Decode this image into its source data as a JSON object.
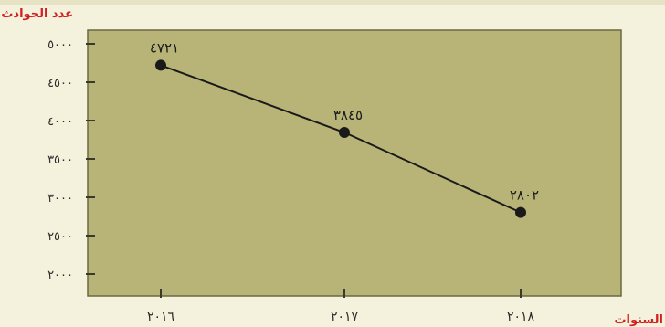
{
  "chart_data": {
    "type": "line",
    "title": "",
    "ylabel": "عدد الحوادث",
    "xlabel": "السنوات",
    "categories": [
      "٢٠١٦",
      "٢٠١٧",
      "٢٠١٨"
    ],
    "series": [
      {
        "values": [
          4721,
          3845,
          2802
        ],
        "labels": [
          "٤٧٢١",
          "٣٨٤٥",
          "٢٨٠٢"
        ]
      }
    ],
    "ylim": [
      2000,
      5000
    ],
    "yticks": [
      2000,
      2500,
      3000,
      3500,
      4000,
      4500,
      5000
    ],
    "ytick_labels": [
      "٢٠٠٠",
      "٢٥٠٠",
      "٣٠٠٠",
      "٣٥٠٠",
      "٤٠٠٠",
      "٤٥٠٠",
      "٥٠٠٠"
    ],
    "grid": false,
    "legend": "none",
    "colors": {
      "plot_bg": "#b8b478",
      "page_bg": "#f4f2dc",
      "line": "#1a1a1a",
      "axis_label": "#d02020",
      "tick_text": "#2a2a2a"
    }
  }
}
